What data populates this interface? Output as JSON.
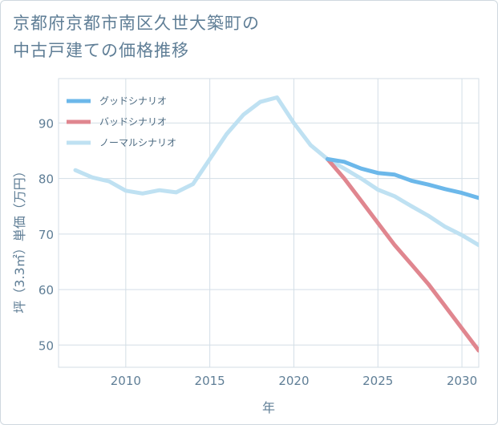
{
  "page": {
    "title_line1": "京都府京都市南区久世大築町の",
    "title_line2": "中古戸建ての価格推移"
  },
  "chart_data": {
    "type": "line",
    "title": "京都府京都市南区久世大築町の中古戸建ての価格推移",
    "xlabel": "年",
    "ylabel": "坪（3.3㎡）単価（万円）",
    "xlim": [
      2006,
      2031
    ],
    "ylim": [
      46,
      98
    ],
    "xticks": [
      2010,
      2015,
      2020,
      2025,
      2030
    ],
    "yticks": [
      50,
      60,
      70,
      80,
      90
    ],
    "grid": true,
    "legend_position": "top-left",
    "series": [
      {
        "name": "グッドシナリオ",
        "color": "#6cb8ea",
        "x": [
          2022,
          2023,
          2024,
          2025,
          2026,
          2027,
          2028,
          2029,
          2030,
          2031
        ],
        "y": [
          83.5,
          83.0,
          81.8,
          81.0,
          80.7,
          79.6,
          78.9,
          78.1,
          77.4,
          76.5
        ]
      },
      {
        "name": "バッドシナリオ",
        "color": "#e0868f",
        "x": [
          2022,
          2023,
          2024,
          2025,
          2026,
          2027,
          2028,
          2029,
          2030,
          2031
        ],
        "y": [
          83.5,
          80.0,
          76.0,
          72.0,
          68.0,
          64.5,
          61.0,
          57.0,
          53.0,
          49.0
        ]
      },
      {
        "name": "ノーマルシナリオ",
        "color": "#bfe1f2",
        "x": [
          2007,
          2008,
          2009,
          2010,
          2011,
          2012,
          2013,
          2014,
          2015,
          2016,
          2017,
          2018,
          2019,
          2020,
          2021,
          2022,
          2023,
          2024,
          2025,
          2026,
          2027,
          2028,
          2029,
          2030,
          2031
        ],
        "y": [
          81.5,
          80.2,
          79.5,
          77.8,
          77.3,
          77.9,
          77.5,
          79.0,
          83.5,
          88.0,
          91.5,
          93.8,
          94.6,
          90.0,
          86.0,
          83.5,
          81.8,
          80.0,
          78.0,
          76.8,
          75.0,
          73.3,
          71.3,
          69.8,
          68.0
        ]
      }
    ]
  }
}
